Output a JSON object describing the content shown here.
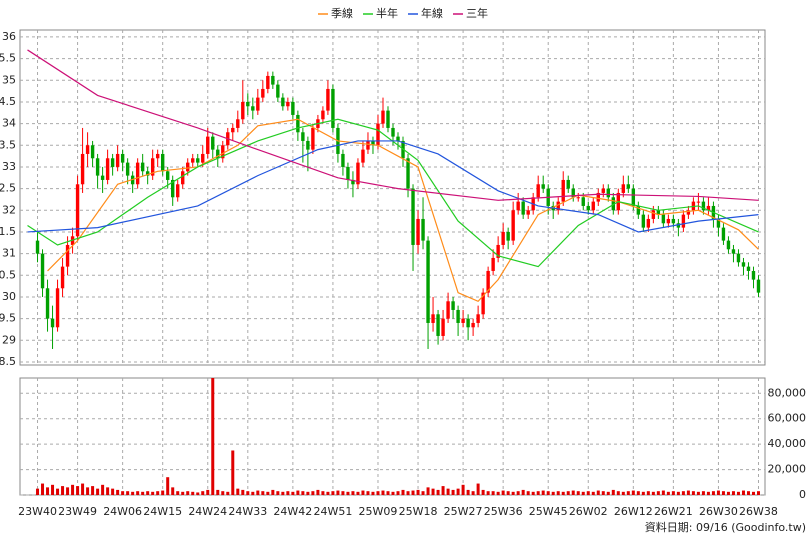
{
  "chart_data": {
    "type": "candlestick",
    "source": "資料日期: 09/16 (Goodinfo.tw)",
    "up_color": "#ff0000",
    "down_color": "#00a000",
    "grid": true,
    "xlim": [
      -3.5,
      145.3
    ],
    "xticks": [
      {
        "value": 0,
        "label": "23W40"
      },
      {
        "value": 8,
        "label": "23W49"
      },
      {
        "value": 17,
        "label": "24W06"
      },
      {
        "value": 25,
        "label": "24W15"
      },
      {
        "value": 34,
        "label": "24W24"
      },
      {
        "value": 42,
        "label": "24W33"
      },
      {
        "value": 51,
        "label": "24W42"
      },
      {
        "value": 59,
        "label": "24W51"
      },
      {
        "value": 68,
        "label": "25W09"
      },
      {
        "value": 76,
        "label": "25W18"
      },
      {
        "value": 85,
        "label": "25W27"
      },
      {
        "value": 93,
        "label": "25W36"
      },
      {
        "value": 102,
        "label": "25W45"
      },
      {
        "value": 110,
        "label": "26W02"
      },
      {
        "value": 119,
        "label": "26W12"
      },
      {
        "value": 127,
        "label": "26W21"
      },
      {
        "value": 136,
        "label": "26W30"
      },
      {
        "value": 144,
        "label": "26W38"
      }
    ],
    "ylim": [
      28.43,
      36.16
    ],
    "yticks": [
      36,
      {
        "value": 35.5,
        "label": "5.5"
      },
      35,
      {
        "value": 34.5,
        "label": "4.5"
      },
      34,
      {
        "value": 33.5,
        "label": "3.5"
      },
      33,
      {
        "value": 32.5,
        "label": "2.5"
      },
      32,
      {
        "value": 31.5,
        "label": "1.5"
      },
      31,
      {
        "value": 30.5,
        "label": "0.5"
      },
      30,
      {
        "value": 29.5,
        "label": "9.5"
      },
      29,
      {
        "value": 28.5,
        "label": "8.5"
      }
    ],
    "candles": [
      [
        31.3,
        31.5,
        30.8,
        31.0
      ],
      [
        31.0,
        31.1,
        30.0,
        30.2
      ],
      [
        30.2,
        30.4,
        29.2,
        29.5
      ],
      [
        29.5,
        29.8,
        28.8,
        29.3
      ],
      [
        29.3,
        30.4,
        29.2,
        30.2
      ],
      [
        30.2,
        30.9,
        30.0,
        30.7
      ],
      [
        30.7,
        31.4,
        30.5,
        31.2
      ],
      [
        31.2,
        31.6,
        31.0,
        31.4
      ],
      [
        31.4,
        32.8,
        31.3,
        32.6
      ],
      [
        32.6,
        33.9,
        32.4,
        33.3
      ],
      [
        33.3,
        33.8,
        33.0,
        33.5
      ],
      [
        33.5,
        33.6,
        33.0,
        33.2
      ],
      [
        33.2,
        33.3,
        32.5,
        32.8
      ],
      [
        32.8,
        33.0,
        32.4,
        32.7
      ],
      [
        32.7,
        33.4,
        32.6,
        33.2
      ],
      [
        33.2,
        33.3,
        32.8,
        33.0
      ],
      [
        33.0,
        33.5,
        32.9,
        33.3
      ],
      [
        33.3,
        33.4,
        32.9,
        33.1
      ],
      [
        33.1,
        33.2,
        32.6,
        32.8
      ],
      [
        32.8,
        32.9,
        32.4,
        32.6
      ],
      [
        32.6,
        33.2,
        32.5,
        33.1
      ],
      [
        33.1,
        33.3,
        32.8,
        32.9
      ],
      [
        32.9,
        33.0,
        32.6,
        32.8
      ],
      [
        32.8,
        33.4,
        32.7,
        33.2
      ],
      [
        33.2,
        33.4,
        33.0,
        33.3
      ],
      [
        33.3,
        33.4,
        32.8,
        32.9
      ],
      [
        32.9,
        33.0,
        32.5,
        32.7
      ],
      [
        32.7,
        32.8,
        32.1,
        32.3
      ],
      [
        32.3,
        32.7,
        32.2,
        32.6
      ],
      [
        32.6,
        33.0,
        32.5,
        32.9
      ],
      [
        32.9,
        33.2,
        32.8,
        33.1
      ],
      [
        33.1,
        33.3,
        33.0,
        33.2
      ],
      [
        33.2,
        33.3,
        33.0,
        33.1
      ],
      [
        33.1,
        33.5,
        33.0,
        33.3
      ],
      [
        33.3,
        33.9,
        33.2,
        33.7
      ],
      [
        33.7,
        33.8,
        33.2,
        33.4
      ],
      [
        33.4,
        33.5,
        33.0,
        33.2
      ],
      [
        33.2,
        33.6,
        33.1,
        33.5
      ],
      [
        33.5,
        33.9,
        33.4,
        33.8
      ],
      [
        33.8,
        34.0,
        33.6,
        33.9
      ],
      [
        33.9,
        34.3,
        33.8,
        34.1
      ],
      [
        34.1,
        35.0,
        34.0,
        34.5
      ],
      [
        34.5,
        34.7,
        34.2,
        34.4
      ],
      [
        34.4,
        34.6,
        34.1,
        34.3
      ],
      [
        34.3,
        34.8,
        34.2,
        34.6
      ],
      [
        34.6,
        35.0,
        34.5,
        34.8
      ],
      [
        34.8,
        35.2,
        34.7,
        35.1
      ],
      [
        35.1,
        35.2,
        34.8,
        34.9
      ],
      [
        34.9,
        35.0,
        34.5,
        34.6
      ],
      [
        34.6,
        34.7,
        34.3,
        34.4
      ],
      [
        34.4,
        34.6,
        34.3,
        34.5
      ],
      [
        34.5,
        34.6,
        34.1,
        34.2
      ],
      [
        34.2,
        34.3,
        33.6,
        33.8
      ],
      [
        33.8,
        33.9,
        33.1,
        33.6
      ],
      [
        33.6,
        33.7,
        32.9,
        33.4
      ],
      [
        33.4,
        34.0,
        33.3,
        33.9
      ],
      [
        33.9,
        34.2,
        33.8,
        34.1
      ],
      [
        34.1,
        34.4,
        34.0,
        34.3
      ],
      [
        34.3,
        35.0,
        34.2,
        34.8
      ],
      [
        34.8,
        34.9,
        33.8,
        33.9
      ],
      [
        33.9,
        34.0,
        33.1,
        33.3
      ],
      [
        33.3,
        33.4,
        32.8,
        33.0
      ],
      [
        33.0,
        33.1,
        32.5,
        32.7
      ],
      [
        32.7,
        32.9,
        32.3,
        32.6
      ],
      [
        32.6,
        33.2,
        32.5,
        33.1
      ],
      [
        33.1,
        33.6,
        33.0,
        33.4
      ],
      [
        33.4,
        33.8,
        33.3,
        33.6
      ],
      [
        33.6,
        33.7,
        33.3,
        33.5
      ],
      [
        33.5,
        34.2,
        33.4,
        34.0
      ],
      [
        34.0,
        34.6,
        33.9,
        34.3
      ],
      [
        34.3,
        34.4,
        33.8,
        33.9
      ],
      [
        33.9,
        34.0,
        33.5,
        33.7
      ],
      [
        33.7,
        33.8,
        33.4,
        33.6
      ],
      [
        33.6,
        33.7,
        33.0,
        33.2
      ],
      [
        33.2,
        33.3,
        32.3,
        32.5
      ],
      [
        32.5,
        32.6,
        30.6,
        31.2
      ],
      [
        31.2,
        32.0,
        31.0,
        31.8
      ],
      [
        31.8,
        32.3,
        31.1,
        31.3
      ],
      [
        31.3,
        31.4,
        28.8,
        29.4
      ],
      [
        29.4,
        30.0,
        29.2,
        29.6
      ],
      [
        29.6,
        29.7,
        28.9,
        29.1
      ],
      [
        29.1,
        29.7,
        29.0,
        29.5
      ],
      [
        29.5,
        30.1,
        29.4,
        29.9
      ],
      [
        29.9,
        30.0,
        29.5,
        29.7
      ],
      [
        29.7,
        29.8,
        29.1,
        29.4
      ],
      [
        29.4,
        29.7,
        29.3,
        29.5
      ],
      [
        29.5,
        29.6,
        29.0,
        29.3
      ],
      [
        29.3,
        29.5,
        29.1,
        29.4
      ],
      [
        29.4,
        29.8,
        29.3,
        29.6
      ],
      [
        29.6,
        30.2,
        29.5,
        30.1
      ],
      [
        30.1,
        30.7,
        30.0,
        30.6
      ],
      [
        30.6,
        31.1,
        30.5,
        30.9
      ],
      [
        30.9,
        31.4,
        30.8,
        31.2
      ],
      [
        31.2,
        31.7,
        31.1,
        31.5
      ],
      [
        31.5,
        31.6,
        31.1,
        31.3
      ],
      [
        31.3,
        32.2,
        31.2,
        32.0
      ],
      [
        32.0,
        32.4,
        31.9,
        32.2
      ],
      [
        32.2,
        32.3,
        31.8,
        31.9
      ],
      [
        31.9,
        32.1,
        31.8,
        32.0
      ],
      [
        32.0,
        32.4,
        31.9,
        32.3
      ],
      [
        32.3,
        32.8,
        32.2,
        32.6
      ],
      [
        32.6,
        32.8,
        32.4,
        32.5
      ],
      [
        32.5,
        32.6,
        31.9,
        32.1
      ],
      [
        32.1,
        32.2,
        31.8,
        32.0
      ],
      [
        32.0,
        32.3,
        31.9,
        32.2
      ],
      [
        32.2,
        32.9,
        32.1,
        32.7
      ],
      [
        32.7,
        32.8,
        32.4,
        32.5
      ],
      [
        32.5,
        32.6,
        32.2,
        32.3
      ],
      [
        32.3,
        32.4,
        32.2,
        32.3
      ],
      [
        32.3,
        32.4,
        32.0,
        32.1
      ],
      [
        32.1,
        32.2,
        31.9,
        32.0
      ],
      [
        32.0,
        32.3,
        31.9,
        32.2
      ],
      [
        32.2,
        32.5,
        32.1,
        32.4
      ],
      [
        32.4,
        32.6,
        32.3,
        32.5
      ],
      [
        32.5,
        32.6,
        32.2,
        32.3
      ],
      [
        32.3,
        32.4,
        31.9,
        32.0
      ],
      [
        32.0,
        32.5,
        31.9,
        32.4
      ],
      [
        32.4,
        32.8,
        32.3,
        32.6
      ],
      [
        32.6,
        32.8,
        32.4,
        32.5
      ],
      [
        32.5,
        32.6,
        32.0,
        32.1
      ],
      [
        32.1,
        32.2,
        31.8,
        31.9
      ],
      [
        31.9,
        32.0,
        31.5,
        31.6
      ],
      [
        31.6,
        31.9,
        31.5,
        31.8
      ],
      [
        31.8,
        32.1,
        31.7,
        32.0
      ],
      [
        32.0,
        32.1,
        31.8,
        31.9
      ],
      [
        31.9,
        32.0,
        31.6,
        31.7
      ],
      [
        31.7,
        31.9,
        31.6,
        31.8
      ],
      [
        31.8,
        31.9,
        31.6,
        31.7
      ],
      [
        31.7,
        31.8,
        31.4,
        31.6
      ],
      [
        31.6,
        32.0,
        31.5,
        31.9
      ],
      [
        31.9,
        32.1,
        31.8,
        32.0
      ],
      [
        32.0,
        32.3,
        31.9,
        32.2
      ],
      [
        32.2,
        32.4,
        32.0,
        32.2
      ],
      [
        32.2,
        32.3,
        31.9,
        32.0
      ],
      [
        32.0,
        32.3,
        31.9,
        32.1
      ],
      [
        32.1,
        32.2,
        31.6,
        31.8
      ],
      [
        31.8,
        31.9,
        31.4,
        31.6
      ],
      [
        31.6,
        31.7,
        31.2,
        31.3
      ],
      [
        31.3,
        31.4,
        31.0,
        31.1
      ],
      [
        31.1,
        31.2,
        30.8,
        31.0
      ],
      [
        31.0,
        31.1,
        30.7,
        30.8
      ],
      [
        30.8,
        30.9,
        30.5,
        30.7
      ],
      [
        30.7,
        30.8,
        30.4,
        30.6
      ],
      [
        30.6,
        30.7,
        30.2,
        30.4
      ],
      [
        30.4,
        30.5,
        30.0,
        30.1
      ]
    ],
    "volume": {
      "color": "#e00000",
      "ylim": [
        0,
        92000
      ],
      "yticks": [
        0,
        {
          "value": 20000,
          "label": "20,000"
        },
        {
          "value": 40000,
          "label": "40,000"
        },
        {
          "value": 60000,
          "label": "60,000"
        },
        {
          "value": 80000,
          "label": "80,000"
        }
      ],
      "values": [
        5000,
        9000,
        6000,
        8000,
        5000,
        7000,
        6000,
        8000,
        7000,
        9000,
        6000,
        7000,
        5000,
        8000,
        6000,
        5000,
        4000,
        3000,
        3000,
        2500,
        3000,
        2500,
        3000,
        2500,
        3000,
        3500,
        14000,
        6000,
        3000,
        2500,
        3000,
        2500,
        2000,
        3000,
        4000,
        92000,
        4000,
        3000,
        2500,
        35000,
        5000,
        4000,
        3000,
        2500,
        3500,
        3000,
        2500,
        4000,
        3000,
        2500,
        3000,
        2500,
        3500,
        3000,
        2500,
        3000,
        4000,
        3000,
        2500,
        3000,
        3500,
        3000,
        2500,
        3000,
        2500,
        3500,
        3000,
        2500,
        3000,
        3500,
        3000,
        2500,
        3000,
        4000,
        3000,
        3500,
        4000,
        3000,
        6000,
        5000,
        4000,
        7000,
        5000,
        4000,
        5000,
        8000,
        4000,
        3000,
        9000,
        4000,
        3000,
        3000,
        2500,
        3500,
        3000,
        2500,
        3000,
        4000,
        3000,
        2500,
        3000,
        3500,
        3000,
        2500,
        3000,
        2500,
        3000,
        3500,
        3000,
        2500,
        3000,
        2500,
        3500,
        3000,
        2500,
        4000,
        3000,
        2500,
        3000,
        3500,
        3000,
        2500,
        3000,
        2500,
        3000,
        3500,
        2500,
        3000,
        2500,
        3000,
        3500,
        3000,
        2500,
        3000,
        2500,
        3000,
        3500,
        3000,
        2500,
        3000,
        2500,
        3500,
        3000,
        2500,
        3000
      ]
    },
    "series": [
      {
        "name": "季線",
        "color": "#ff8c1a",
        "x": [
          2,
          8,
          16,
          24,
          32,
          40,
          44,
          52,
          60,
          68,
          76,
          84,
          88,
          92,
          100,
          108,
          116,
          124,
          132,
          140,
          144
        ],
        "values": [
          30.6,
          31.3,
          32.6,
          32.9,
          33.0,
          33.5,
          33.95,
          34.1,
          33.6,
          33.5,
          33.0,
          30.1,
          29.9,
          30.4,
          31.9,
          32.35,
          32.2,
          31.9,
          32.0,
          31.55,
          31.1
        ]
      },
      {
        "name": "半年",
        "color": "#22cc22",
        "x": [
          -2,
          4,
          12,
          22,
          32,
          44,
          52,
          60,
          68,
          76,
          84,
          92,
          100,
          108,
          116,
          124,
          132,
          144
        ],
        "values": [
          31.65,
          31.2,
          31.5,
          32.3,
          33.0,
          33.6,
          33.9,
          34.1,
          33.85,
          33.15,
          31.75,
          30.95,
          30.7,
          31.65,
          32.2,
          32.0,
          32.1,
          31.5
        ]
      },
      {
        "name": "年線",
        "color": "#2255dd",
        "x": [
          -2,
          12,
          32,
          44,
          56,
          64,
          72,
          80,
          92,
          100,
          112,
          120,
          132,
          144
        ],
        "values": [
          31.5,
          31.6,
          32.1,
          32.8,
          33.4,
          33.6,
          33.6,
          33.3,
          32.45,
          32.1,
          31.9,
          31.5,
          31.75,
          31.9
        ]
      },
      {
        "name": "三年",
        "color": "#cc1177",
        "x": [
          -2,
          12,
          32,
          44,
          60,
          72,
          92,
          112,
          132,
          144
        ],
        "values": [
          35.7,
          34.65,
          33.9,
          33.4,
          32.75,
          32.5,
          32.23,
          32.37,
          32.32,
          32.23
        ]
      }
    ]
  }
}
